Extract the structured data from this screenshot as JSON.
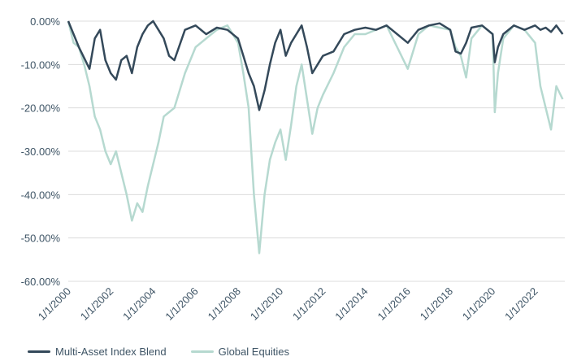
{
  "chart_data": {
    "type": "line",
    "title": "",
    "xlabel": "",
    "ylabel": "",
    "ylim": [
      -60,
      0
    ],
    "y_ticks": [
      "0.00%",
      "-10.00%",
      "-20.00%",
      "-30.00%",
      "-40.00%",
      "-50.00%",
      "-60.00%"
    ],
    "x_ticks": [
      "1/1/2000",
      "1/1/2002",
      "1/1/2004",
      "1/1/2006",
      "1/1/2008",
      "1/1/2010",
      "1/1/2012",
      "1/1/2014",
      "1/1/2016",
      "1/1/2018",
      "1/1/2020",
      "1/1/2022"
    ],
    "x_range": [
      2000.0,
      2023.4
    ],
    "grid": true,
    "legend_position": "bottom-left",
    "series": [
      {
        "name": "Multi-Asset Index Blend",
        "color": "#34495a",
        "x": [
          2000.0,
          2000.25,
          2000.5,
          2000.75,
          2001.0,
          2001.25,
          2001.5,
          2001.75,
          2002.0,
          2002.25,
          2002.5,
          2002.75,
          2003.0,
          2003.25,
          2003.5,
          2003.75,
          2004.0,
          2004.25,
          2004.5,
          2004.75,
          2005.0,
          2005.5,
          2006.0,
          2006.5,
          2007.0,
          2007.5,
          2008.0,
          2008.25,
          2008.5,
          2008.75,
          2009.0,
          2009.25,
          2009.5,
          2009.75,
          2010.0,
          2010.25,
          2010.5,
          2010.75,
          2011.0,
          2011.25,
          2011.5,
          2011.75,
          2012.0,
          2012.5,
          2013.0,
          2013.5,
          2014.0,
          2014.5,
          2015.0,
          2015.5,
          2016.0,
          2016.5,
          2017.0,
          2017.5,
          2018.0,
          2018.25,
          2018.5,
          2018.75,
          2019.0,
          2019.5,
          2020.0,
          2020.1,
          2020.25,
          2020.5,
          2021.0,
          2021.5,
          2022.0,
          2022.25,
          2022.5,
          2022.75,
          2023.0,
          2023.3
        ],
        "values": [
          0.0,
          -3.0,
          -6.0,
          -8.5,
          -11.0,
          -4.0,
          -2.0,
          -9.0,
          -12.0,
          -13.5,
          -9.0,
          -8.0,
          -12.0,
          -6.0,
          -3.0,
          -1.0,
          0.0,
          -2.0,
          -4.0,
          -8.0,
          -9.0,
          -2.0,
          -1.0,
          -3.0,
          -1.5,
          -2.0,
          -4.0,
          -8.0,
          -12.0,
          -15.0,
          -20.5,
          -16.0,
          -10.0,
          -5.0,
          -2.0,
          -8.0,
          -5.0,
          -3.0,
          -1.0,
          -6.0,
          -12.0,
          -10.0,
          -8.0,
          -7.0,
          -3.0,
          -2.0,
          -1.5,
          -2.0,
          -1.0,
          -3.0,
          -5.0,
          -2.0,
          -1.0,
          -0.5,
          -2.0,
          -7.0,
          -7.5,
          -5.0,
          -1.5,
          -1.0,
          -3.0,
          -9.5,
          -6.0,
          -3.0,
          -1.0,
          -2.0,
          -1.0,
          -2.0,
          -1.5,
          -2.5,
          -1.0,
          -3.0
        ]
      },
      {
        "name": "Global Equities",
        "color": "#b6d9d0",
        "x": [
          2000.0,
          2000.25,
          2000.5,
          2000.75,
          2001.0,
          2001.25,
          2001.5,
          2001.75,
          2002.0,
          2002.25,
          2002.5,
          2002.75,
          2003.0,
          2003.25,
          2003.5,
          2003.75,
          2004.0,
          2004.25,
          2004.5,
          2004.75,
          2005.0,
          2005.5,
          2006.0,
          2006.5,
          2007.0,
          2007.5,
          2008.0,
          2008.25,
          2008.5,
          2008.75,
          2009.0,
          2009.25,
          2009.5,
          2009.75,
          2010.0,
          2010.25,
          2010.5,
          2010.75,
          2011.0,
          2011.25,
          2011.5,
          2011.75,
          2012.0,
          2012.5,
          2013.0,
          2013.5,
          2014.0,
          2014.5,
          2015.0,
          2015.5,
          2016.0,
          2016.5,
          2017.0,
          2017.5,
          2018.0,
          2018.25,
          2018.5,
          2018.75,
          2019.0,
          2019.5,
          2020.0,
          2020.1,
          2020.25,
          2020.5,
          2021.0,
          2021.5,
          2022.0,
          2022.25,
          2022.5,
          2022.75,
          2023.0,
          2023.3
        ],
        "values": [
          0.0,
          -5.0,
          -6.0,
          -10.0,
          -15.0,
          -22.0,
          -25.0,
          -30.0,
          -33.0,
          -30.0,
          -35.0,
          -40.0,
          -46.0,
          -42.0,
          -44.0,
          -38.0,
          -33.0,
          -28.0,
          -22.0,
          -21.0,
          -20.0,
          -12.0,
          -6.0,
          -4.0,
          -2.0,
          -1.0,
          -5.0,
          -12.0,
          -20.0,
          -40.0,
          -53.5,
          -40.0,
          -32.0,
          -28.0,
          -25.0,
          -32.0,
          -24.0,
          -15.0,
          -10.0,
          -18.0,
          -26.0,
          -20.0,
          -17.0,
          -12.0,
          -6.0,
          -3.0,
          -3.0,
          -2.0,
          -1.0,
          -6.0,
          -11.0,
          -3.0,
          -1.0,
          -1.5,
          -2.0,
          -6.0,
          -8.0,
          -13.0,
          -4.0,
          -1.0,
          -3.0,
          -21.0,
          -12.0,
          -4.0,
          -1.0,
          -2.0,
          -5.0,
          -15.0,
          -20.0,
          -25.0,
          -15.0,
          -18.0
        ]
      }
    ]
  }
}
